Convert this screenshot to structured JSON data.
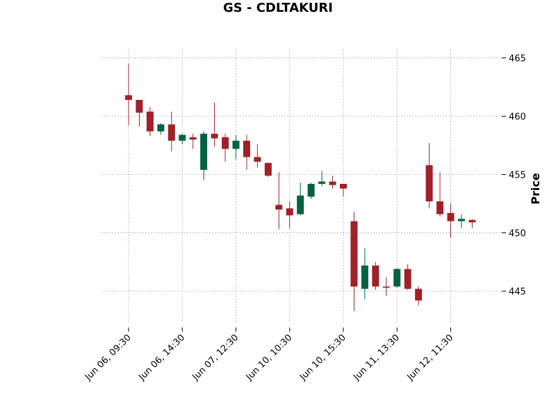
{
  "chart_data": {
    "type": "candlestick",
    "title": "GS - CDLTAKURI",
    "ylabel": "Price",
    "xlabel": "",
    "ylim": [
      442.3,
      465.8
    ],
    "yticks": [
      445,
      450,
      455,
      460,
      465
    ],
    "grid": true,
    "colors": {
      "up": "#006340",
      "down": "#a02128",
      "grid": "#b0b0b0"
    },
    "xtick_labels": [
      {
        "index": 0,
        "label": "Jun 06, 09:30"
      },
      {
        "index": 5,
        "label": "Jun 06, 14:30"
      },
      {
        "index": 10,
        "label": "Jun 07, 12:30"
      },
      {
        "index": 15,
        "label": "Jun 10, 10:30"
      },
      {
        "index": 20,
        "label": "Jun 10, 15:30"
      },
      {
        "index": 25,
        "label": "Jun 11, 13:30"
      },
      {
        "index": 30,
        "label": "Jun 12, 11:30"
      }
    ],
    "candles": [
      {
        "open": 461.8,
        "high": 464.5,
        "low": 459.2,
        "close": 461.4
      },
      {
        "open": 461.4,
        "high": 461.4,
        "low": 459.1,
        "close": 460.3
      },
      {
        "open": 460.4,
        "high": 460.8,
        "low": 458.3,
        "close": 458.7
      },
      {
        "open": 458.7,
        "high": 459.4,
        "low": 458.4,
        "close": 459.3
      },
      {
        "open": 459.3,
        "high": 460.4,
        "low": 457.0,
        "close": 457.9
      },
      {
        "open": 457.9,
        "high": 458.5,
        "low": 457.6,
        "close": 458.4
      },
      {
        "open": 458.2,
        "high": 458.5,
        "low": 457.2,
        "close": 458.0
      },
      {
        "open": 455.4,
        "high": 458.7,
        "low": 454.5,
        "close": 458.5
      },
      {
        "open": 458.5,
        "high": 461.2,
        "low": 457.4,
        "close": 458.1
      },
      {
        "open": 458.2,
        "high": 458.5,
        "low": 456.1,
        "close": 457.2
      },
      {
        "open": 457.2,
        "high": 458.4,
        "low": 456.3,
        "close": 457.9
      },
      {
        "open": 457.9,
        "high": 458.4,
        "low": 455.4,
        "close": 456.5
      },
      {
        "open": 456.5,
        "high": 457.6,
        "low": 455.6,
        "close": 456.1
      },
      {
        "open": 456.0,
        "high": 456.0,
        "low": 454.8,
        "close": 454.9
      },
      {
        "open": 452.4,
        "high": 455.2,
        "low": 450.3,
        "close": 452.0
      },
      {
        "open": 452.1,
        "high": 452.7,
        "low": 450.4,
        "close": 451.5
      },
      {
        "open": 451.6,
        "high": 454.3,
        "low": 451.5,
        "close": 453.2
      },
      {
        "open": 453.1,
        "high": 454.3,
        "low": 452.9,
        "close": 454.2
      },
      {
        "open": 454.2,
        "high": 455.3,
        "low": 454.0,
        "close": 454.4
      },
      {
        "open": 454.4,
        "high": 454.9,
        "low": 453.8,
        "close": 454.1
      },
      {
        "open": 454.2,
        "high": 454.2,
        "low": 453.1,
        "close": 453.8
      },
      {
        "open": 451.0,
        "high": 451.8,
        "low": 443.3,
        "close": 445.4
      },
      {
        "open": 445.2,
        "high": 448.7,
        "low": 444.3,
        "close": 447.2
      },
      {
        "open": 447.2,
        "high": 447.5,
        "low": 445.1,
        "close": 445.4
      },
      {
        "open": 445.4,
        "high": 446.2,
        "low": 444.6,
        "close": 445.3
      },
      {
        "open": 445.4,
        "high": 447.0,
        "low": 445.3,
        "close": 446.9
      },
      {
        "open": 446.9,
        "high": 447.3,
        "low": 445.1,
        "close": 445.2
      },
      {
        "open": 445.2,
        "high": 445.4,
        "low": 443.8,
        "close": 444.2
      },
      {
        "open": 455.8,
        "high": 457.7,
        "low": 452.1,
        "close": 452.7
      },
      {
        "open": 452.7,
        "high": 455.2,
        "low": 451.4,
        "close": 451.6
      },
      {
        "open": 451.7,
        "high": 452.5,
        "low": 449.6,
        "close": 451.0
      },
      {
        "open": 451.0,
        "high": 451.6,
        "low": 450.4,
        "close": 451.2
      },
      {
        "open": 451.1,
        "high": 451.2,
        "low": 450.4,
        "close": 450.9
      }
    ]
  }
}
